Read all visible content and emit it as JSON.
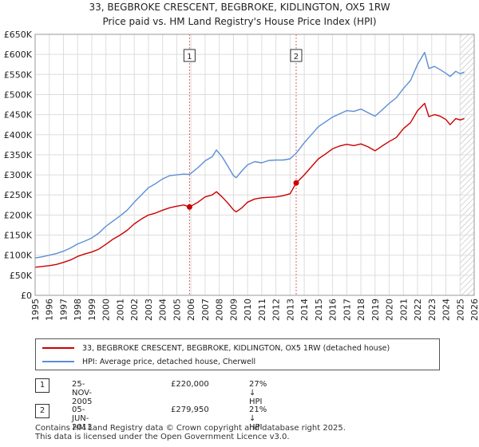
{
  "title_line1": "33, BEGBROKE CRESCENT, BEGBROKE, KIDLINGTON, OX5 1RW",
  "title_line2": "Price paid vs. HM Land Registry's House Price Index (HPI)",
  "colors": {
    "property": "#cc0000",
    "hpi": "#5b8fd4",
    "marker_line": "#e06060",
    "grid": "#dddddd",
    "future_hatch": "#bbbbbb"
  },
  "chart_data": {
    "type": "line",
    "ylim": [
      0,
      650000
    ],
    "xlim": [
      1995,
      2026
    ],
    "y_ticks": [
      0,
      50000,
      100000,
      150000,
      200000,
      250000,
      300000,
      350000,
      400000,
      450000,
      500000,
      550000,
      600000,
      650000
    ],
    "y_tick_labels": [
      "£0",
      "£50K",
      "£100K",
      "£150K",
      "£200K",
      "£250K",
      "£300K",
      "£350K",
      "£400K",
      "£450K",
      "£500K",
      "£550K",
      "£600K",
      "£650K"
    ],
    "x_tick_labels": [
      "1995",
      "1996",
      "1997",
      "1998",
      "1999",
      "2000",
      "2001",
      "2002",
      "2003",
      "2004",
      "2005",
      "2006",
      "2007",
      "2008",
      "2009",
      "2010",
      "2011",
      "2012",
      "2013",
      "2014",
      "2015",
      "2016",
      "2017",
      "2018",
      "2019",
      "2020",
      "2021",
      "2022",
      "2023",
      "2024",
      "2025",
      "2026"
    ],
    "series": [
      {
        "name": "33, BEGBROKE CRESCENT, BEGBROKE, KIDLINGTON, OX5 1RW (detached house)",
        "color": "#cc0000",
        "x": [
          1995.0,
          1995.5,
          1996.0,
          1996.5,
          1997.0,
          1997.5,
          1998.0,
          1998.5,
          1999.0,
          1999.5,
          2000.0,
          2000.5,
          2001.0,
          2001.5,
          2002.0,
          2002.5,
          2003.0,
          2003.5,
          2004.0,
          2004.5,
          2005.0,
          2005.5,
          2005.9,
          2006.5,
          2007.0,
          2007.5,
          2007.8,
          2008.2,
          2008.6,
          2009.0,
          2009.2,
          2009.6,
          2010.0,
          2010.5,
          2011.0,
          2011.5,
          2012.0,
          2012.5,
          2013.0,
          2013.43,
          2014.0,
          2014.5,
          2015.0,
          2015.5,
          2016.0,
          2016.5,
          2017.0,
          2017.5,
          2018.0,
          2018.5,
          2019.0,
          2019.5,
          2020.0,
          2020.5,
          2021.0,
          2021.5,
          2022.0,
          2022.5,
          2022.8,
          2023.2,
          2023.6,
          2024.0,
          2024.3,
          2024.7,
          2025.0,
          2025.3
        ],
        "y": [
          70000,
          72000,
          74000,
          77000,
          82000,
          88000,
          97000,
          103000,
          108000,
          115000,
          127000,
          140000,
          150000,
          162000,
          178000,
          190000,
          200000,
          205000,
          212000,
          218000,
          222000,
          225000,
          220000,
          232000,
          245000,
          250000,
          258000,
          245000,
          230000,
          213000,
          208000,
          218000,
          232000,
          240000,
          243000,
          244000,
          245000,
          248000,
          253000,
          279950,
          300000,
          320000,
          340000,
          352000,
          365000,
          372000,
          376000,
          373000,
          377000,
          370000,
          360000,
          372000,
          383000,
          393000,
          415000,
          430000,
          460000,
          478000,
          445000,
          450000,
          446000,
          438000,
          425000,
          440000,
          437000,
          440000
        ]
      },
      {
        "name": "HPI: Average price, detached house, Cherwell",
        "color": "#5b8fd4",
        "x": [
          1995.0,
          1995.5,
          1996.0,
          1996.5,
          1997.0,
          1997.5,
          1998.0,
          1998.5,
          1999.0,
          1999.5,
          2000.0,
          2000.5,
          2001.0,
          2001.5,
          2002.0,
          2002.5,
          2003.0,
          2003.5,
          2004.0,
          2004.5,
          2005.0,
          2005.5,
          2005.9,
          2006.5,
          2007.0,
          2007.5,
          2007.8,
          2008.2,
          2008.6,
          2009.0,
          2009.2,
          2009.6,
          2010.0,
          2010.5,
          2011.0,
          2011.5,
          2012.0,
          2012.5,
          2013.0,
          2013.43,
          2014.0,
          2014.5,
          2015.0,
          2015.5,
          2016.0,
          2016.5,
          2017.0,
          2017.5,
          2018.0,
          2018.5,
          2019.0,
          2019.5,
          2020.0,
          2020.5,
          2021.0,
          2021.5,
          2022.0,
          2022.5,
          2022.8,
          2023.2,
          2023.6,
          2024.0,
          2024.3,
          2024.7,
          2025.0,
          2025.3
        ],
        "y": [
          93000,
          96000,
          100000,
          104000,
          110000,
          118000,
          128000,
          135000,
          143000,
          155000,
          172000,
          185000,
          198000,
          212000,
          232000,
          250000,
          268000,
          278000,
          290000,
          298000,
          300000,
          302000,
          301000,
          318000,
          335000,
          345000,
          362000,
          345000,
          322000,
          298000,
          293000,
          310000,
          325000,
          333000,
          330000,
          336000,
          337000,
          337000,
          340000,
          354000,
          380000,
          400000,
          420000,
          432000,
          444000,
          452000,
          460000,
          458000,
          464000,
          455000,
          446000,
          462000,
          478000,
          492000,
          515000,
          535000,
          575000,
          605000,
          565000,
          570000,
          562000,
          553000,
          545000,
          558000,
          552000,
          556000
        ]
      }
    ],
    "sales": [
      {
        "label": "1",
        "x": 2005.9,
        "y": 220000
      },
      {
        "label": "2",
        "x": 2013.43,
        "y": 279950
      }
    ],
    "hatch_from": 2025.0
  },
  "legend": {
    "property_label": "33, BEGBROKE CRESCENT, BEGBROKE, KIDLINGTON, OX5 1RW (detached house)",
    "hpi_label": "HPI: Average price, detached house, Cherwell"
  },
  "transactions": [
    {
      "num": "1",
      "date": "25-NOV-2005",
      "price": "£220,000",
      "hpi": "27% ↓ HPI"
    },
    {
      "num": "2",
      "date": "05-JUN-2013",
      "price": "£279,950",
      "hpi": "21% ↓ HPI"
    }
  ],
  "footer": {
    "line1": "Contains HM Land Registry data © Crown copyright and database right 2025.",
    "line2": "This data is licensed under the Open Government Licence v3.0."
  }
}
